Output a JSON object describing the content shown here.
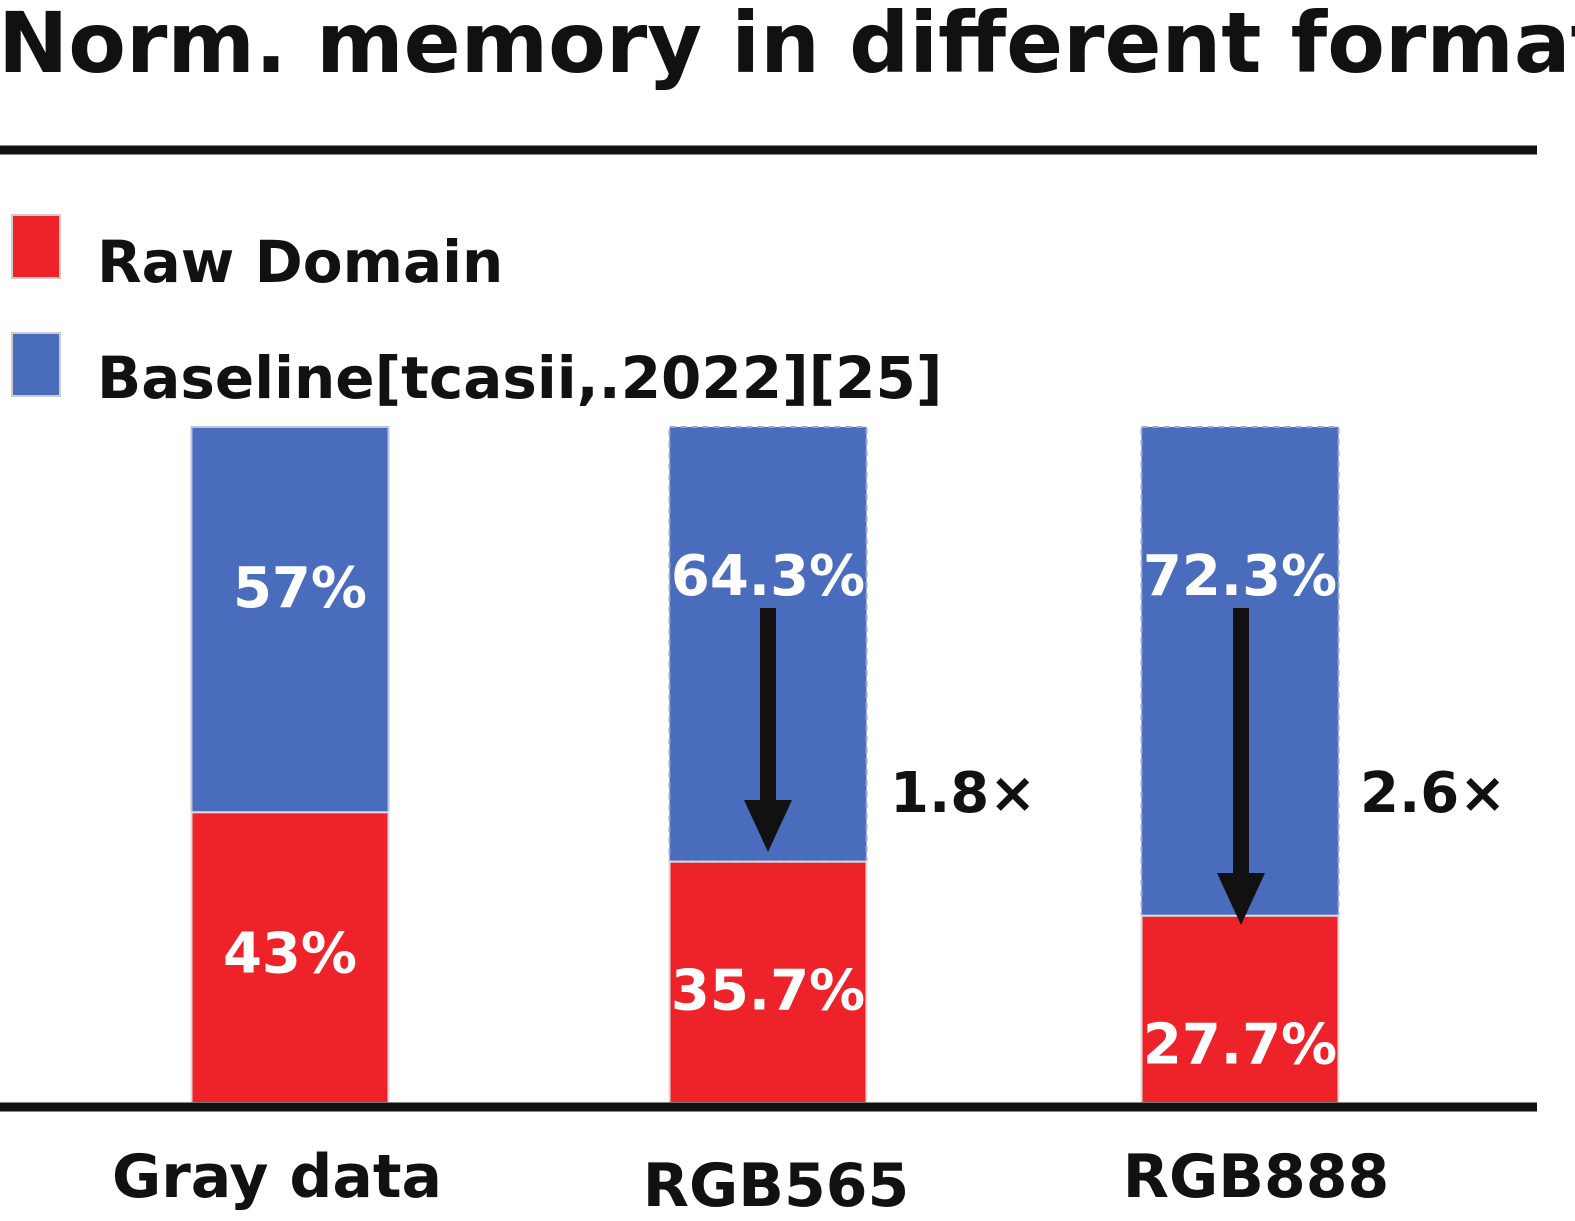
{
  "chart_data": {
    "type": "bar",
    "stacked": true,
    "normalized": true,
    "title": "Norm. memory in different format",
    "categories": [
      "Gray data",
      "RGB565",
      "RGB888"
    ],
    "series": [
      {
        "name": "Raw Domain",
        "color": "#ee2229",
        "values": [
          43,
          35.7,
          27.7
        ],
        "labels": [
          "43%",
          "35.7%",
          "27.7%"
        ]
      },
      {
        "name": "Baseline[tcasii,.2022][25]",
        "color": "#4a6cbd",
        "values": [
          57,
          64.3,
          72.3
        ],
        "labels": [
          "57%",
          "64.3%",
          "72.3%"
        ]
      }
    ],
    "annotations": [
      {
        "category": "RGB565",
        "text": "1.8×"
      },
      {
        "category": "RGB888",
        "text": "2.6×"
      }
    ],
    "ylim": [
      0,
      100
    ],
    "legend_position": "top-left",
    "grid": false
  }
}
